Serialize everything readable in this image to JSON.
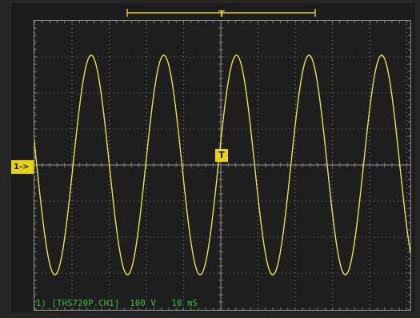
{
  "display": {
    "channel_marker_label": "1->",
    "trigger_marker_label": "T",
    "top_trigger_label": "T",
    "readout": "1) [THS720P.CH1]  100 V   10 mS"
  },
  "waveform": {
    "type": "sine",
    "visible_cycles": 5.2,
    "color": "#e6e24a"
  },
  "colors": {
    "trace": "#e6e24a",
    "marker": "#e8d400",
    "readout": "#39c23a",
    "grid": "#7a7a7a",
    "screen": "#1e1e1e"
  }
}
